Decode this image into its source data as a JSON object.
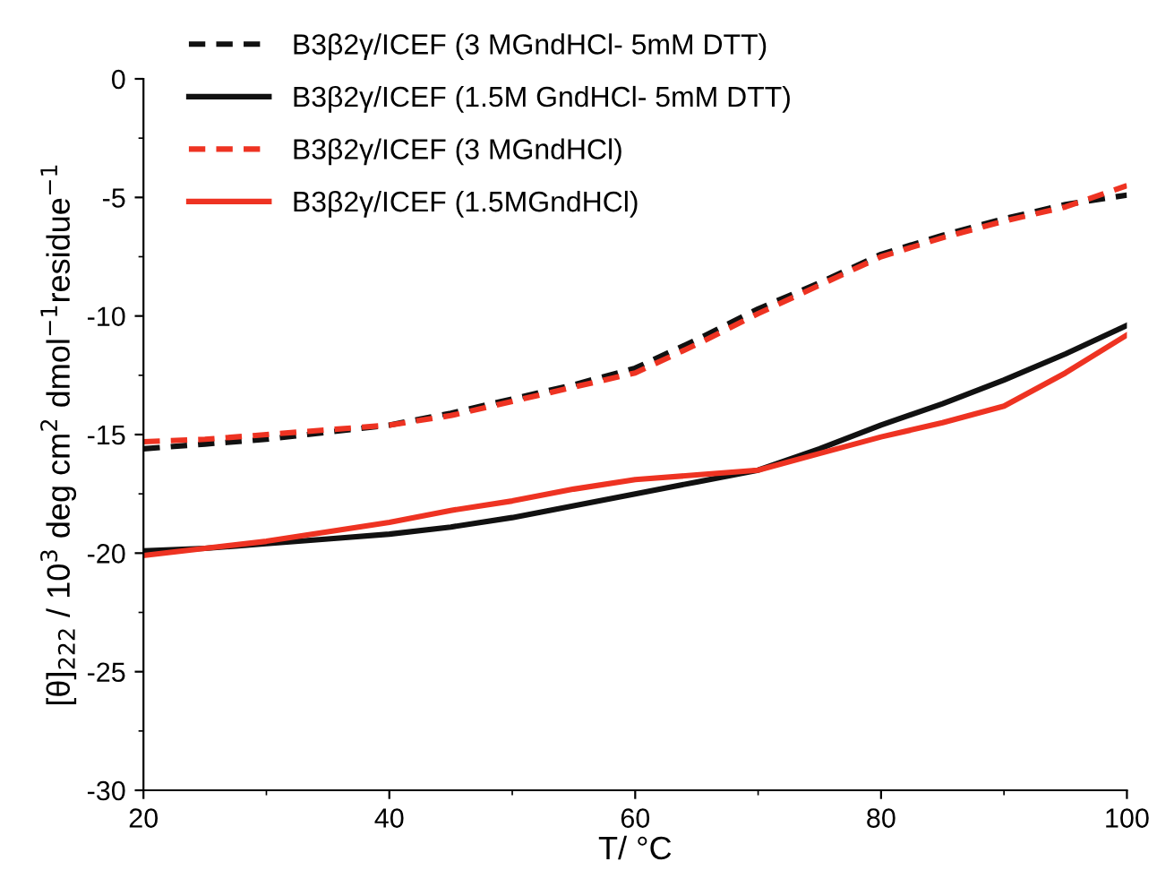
{
  "chart_data": {
    "type": "line",
    "xlabel": "T/ °C",
    "ylabel": "[θ]$_{222}$ / 10$^{3}$ deg cm$^{2}$ dmol$^{−1}$residue$^{−1}$",
    "xlim": [
      20,
      100
    ],
    "xticks": [
      20,
      40,
      60,
      80,
      100
    ],
    "ylim": [
      -30,
      0
    ],
    "yticks": [
      -30,
      -25,
      -20,
      -15,
      -10,
      -5,
      0
    ],
    "grid": false,
    "legend": "top left",
    "marker": "none",
    "x": [
      20,
      25,
      30,
      35,
      40,
      45,
      50,
      55,
      60,
      65,
      70,
      75,
      80,
      85,
      90,
      95,
      100
    ],
    "series": [
      {
        "name": "B3β2γ/ICEF (3 MGndHCl- 5mM DTT)",
        "color": "#111111",
        "line_style": "dashed",
        "values": [
          -15.6,
          -15.4,
          -15.2,
          -14.9,
          -14.6,
          -14.1,
          -13.5,
          -12.9,
          -12.2,
          -11.0,
          -9.7,
          -8.6,
          -7.4,
          -6.6,
          -5.9,
          -5.3,
          -4.9
        ]
      },
      {
        "name": "B3β2γ/ICEF (1.5M GndHCl- 5mM DTT)",
        "color": "#111111",
        "line_style": "solid",
        "values": [
          -19.9,
          -19.8,
          -19.6,
          -19.4,
          -19.2,
          -18.9,
          -18.5,
          -18.0,
          -17.5,
          -17.0,
          -16.5,
          -15.6,
          -14.6,
          -13.7,
          -12.7,
          -11.6,
          -10.4
        ]
      },
      {
        "name": "B3β2γ/ICEF (3 MGndHCl)",
        "color": "#ee3322",
        "line_style": "dashed",
        "values": [
          -15.3,
          -15.2,
          -15.0,
          -14.8,
          -14.6,
          -14.2,
          -13.6,
          -13.0,
          -12.4,
          -11.2,
          -9.9,
          -8.7,
          -7.5,
          -6.7,
          -6.0,
          -5.4,
          -4.5
        ]
      },
      {
        "name": "B3β2γ/ICEF (1.5MGndHCl)",
        "color": "#ee3322",
        "line_style": "solid",
        "values": [
          -20.1,
          -19.8,
          -19.5,
          -19.1,
          -18.7,
          -18.2,
          -17.8,
          -17.3,
          -16.9,
          -16.7,
          -16.5,
          -15.8,
          -15.1,
          -14.5,
          -13.8,
          -12.4,
          -10.8
        ]
      }
    ]
  }
}
